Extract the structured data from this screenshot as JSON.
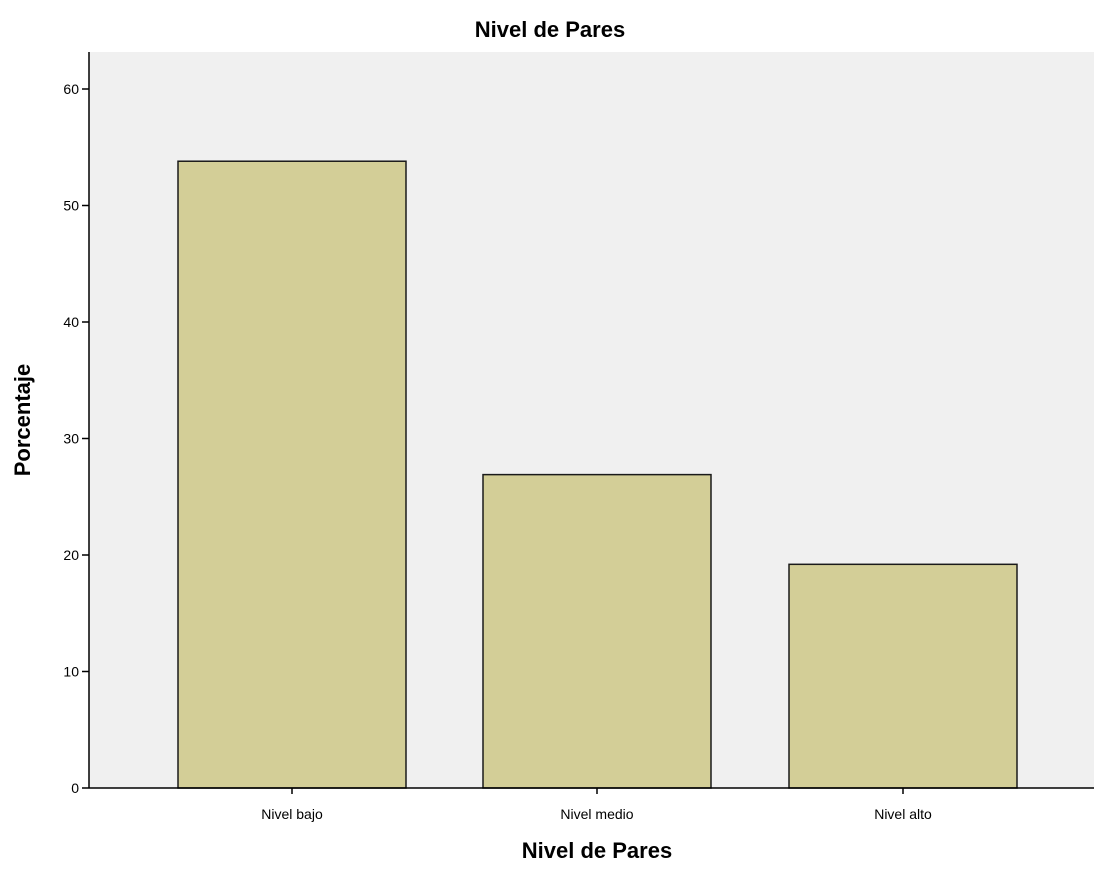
{
  "chart_data": {
    "type": "bar",
    "title": "Nivel de Pares",
    "xlabel": "Nivel de Pares",
    "ylabel": "Porcentaje",
    "categories": [
      "Nivel bajo",
      "Nivel medio",
      "Nivel alto"
    ],
    "values": [
      53.8,
      26.9,
      19.2
    ],
    "ylim": [
      0,
      60
    ],
    "yticks": [
      0,
      10,
      20,
      30,
      40,
      50,
      60
    ],
    "ytick_labels": [
      "0",
      "10",
      "20",
      "30",
      "40",
      "50",
      "60"
    ],
    "grid": false,
    "legend": "none",
    "colors": {
      "bar_fill": "#d3ce97",
      "bar_stroke": "#1a1a1a",
      "plot_background": "#f0f0f0",
      "axis": "#000000"
    }
  }
}
